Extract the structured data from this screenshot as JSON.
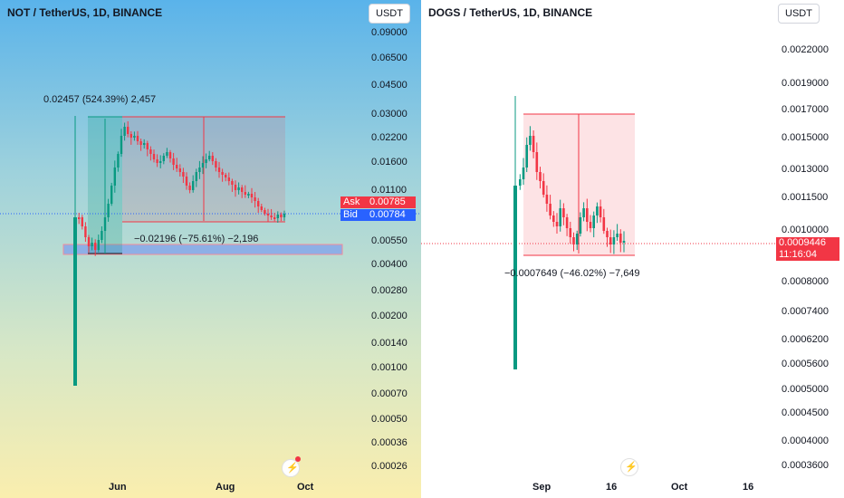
{
  "chart_data": [
    {
      "type": "candlestick",
      "title": "NOT / TetherUS, 1D, BINANCE",
      "currency": "USDT",
      "y_scale": "log",
      "y_ticks": [
        "0.09000",
        "0.06500",
        "0.04500",
        "0.03000",
        "0.02200",
        "0.01600",
        "0.01100",
        "0.00550",
        "0.00400",
        "0.00280",
        "0.00200",
        "0.00140",
        "0.00100",
        "0.00070",
        "0.00050",
        "0.00036",
        "0.00026"
      ],
      "x_ticks": [
        "Jun",
        "Aug",
        "Oct"
      ],
      "ask": {
        "label": "Ask",
        "value": "0.00785"
      },
      "bid": {
        "label": "Bid",
        "value": "0.00784"
      },
      "measure_up": "0.02457 (524.39%) 2,457",
      "measure_down": "−0.02196 (−75.61%) −2,196",
      "colors": {
        "up": "#089981",
        "down": "#f23645",
        "zone": "#6b8bf5"
      }
    },
    {
      "type": "candlestick",
      "title": "DOGS / TetherUS, 1D, BINANCE",
      "currency": "USDT",
      "y_scale": "log",
      "y_ticks": [
        "0.0022000",
        "0.0019000",
        "0.0017000",
        "0.0015000",
        "0.0013000",
        "0.0011500",
        "0.0010000",
        "0.0008000",
        "0.0007400",
        "0.0006200",
        "0.0005600",
        "0.0005000",
        "0.0004500",
        "0.0004000",
        "0.0003600"
      ],
      "x_ticks": [
        "Sep",
        "16",
        "Oct",
        "16"
      ],
      "last_price": {
        "value": "0.0009446",
        "countdown": "11:16:04"
      },
      "measure_down": "−0.0007649 (−46.02%) −7,649",
      "colors": {
        "up": "#089981",
        "down": "#f23645"
      }
    }
  ]
}
